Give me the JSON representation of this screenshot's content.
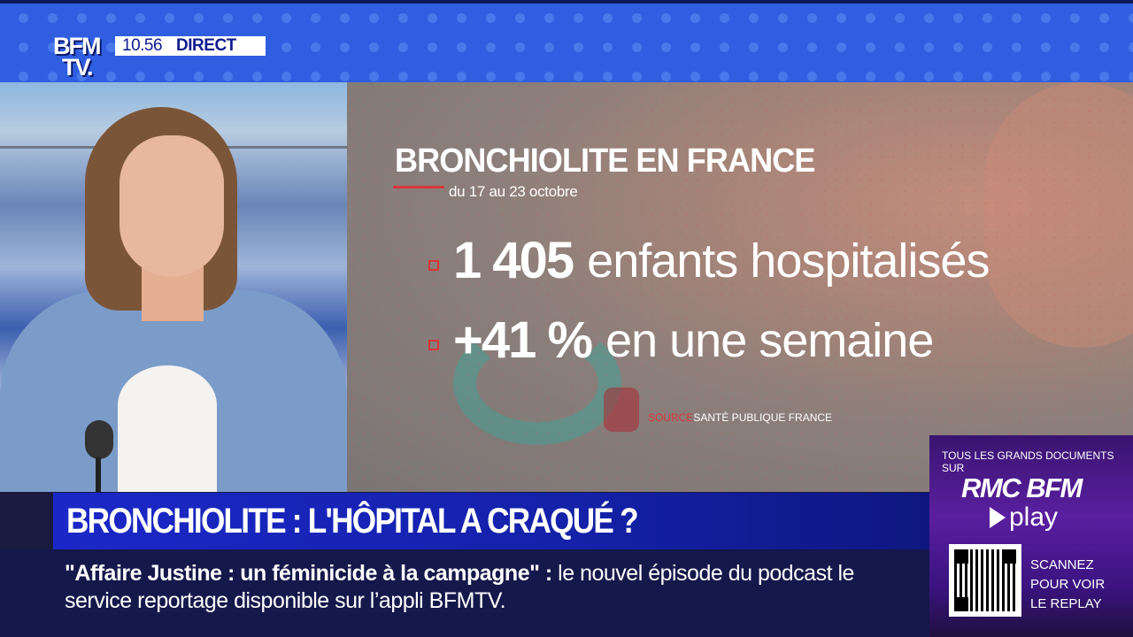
{
  "channel": {
    "logo_line1": "BFM",
    "logo_line2": "TV.",
    "time": "10.56",
    "live_label": "DIRECT"
  },
  "infographic": {
    "title": "BRONCHIOLITE EN FRANCE",
    "date_range": "du 17 au 23 octobre",
    "stats": [
      {
        "value": "1 405",
        "label": "enfants hospitalisés"
      },
      {
        "value": "+41 %",
        "label": "en une semaine"
      }
    ],
    "source_label": "SOURCE",
    "source_name": "SANTÉ PUBLIQUE FRANCE"
  },
  "headline": "BRONCHIOLITE : L'HÔPITAL A CRAQUÉ ?",
  "ticker": {
    "bold": "\"Affaire Justine : un féminicide à la campagne\"  :",
    "text": " le nouvel épisode du podcast le service reportage disponible sur l’appli BFMTV."
  },
  "promo": {
    "top_text": "TOUS LES GRANDS DOCUMENTS SUR",
    "brand": "RMC BFM",
    "play_label": "play",
    "scan_line1": "SCANNEZ",
    "scan_line2": "POUR VOIR",
    "scan_line3": "LE REPLAY"
  },
  "colors": {
    "banner_blue": "#2f5ee0",
    "headline_blue": "#1b28c8",
    "ticker_navy": "#15184a",
    "accent_red": "#d8363a",
    "promo_purple": "#5a1fa0"
  }
}
